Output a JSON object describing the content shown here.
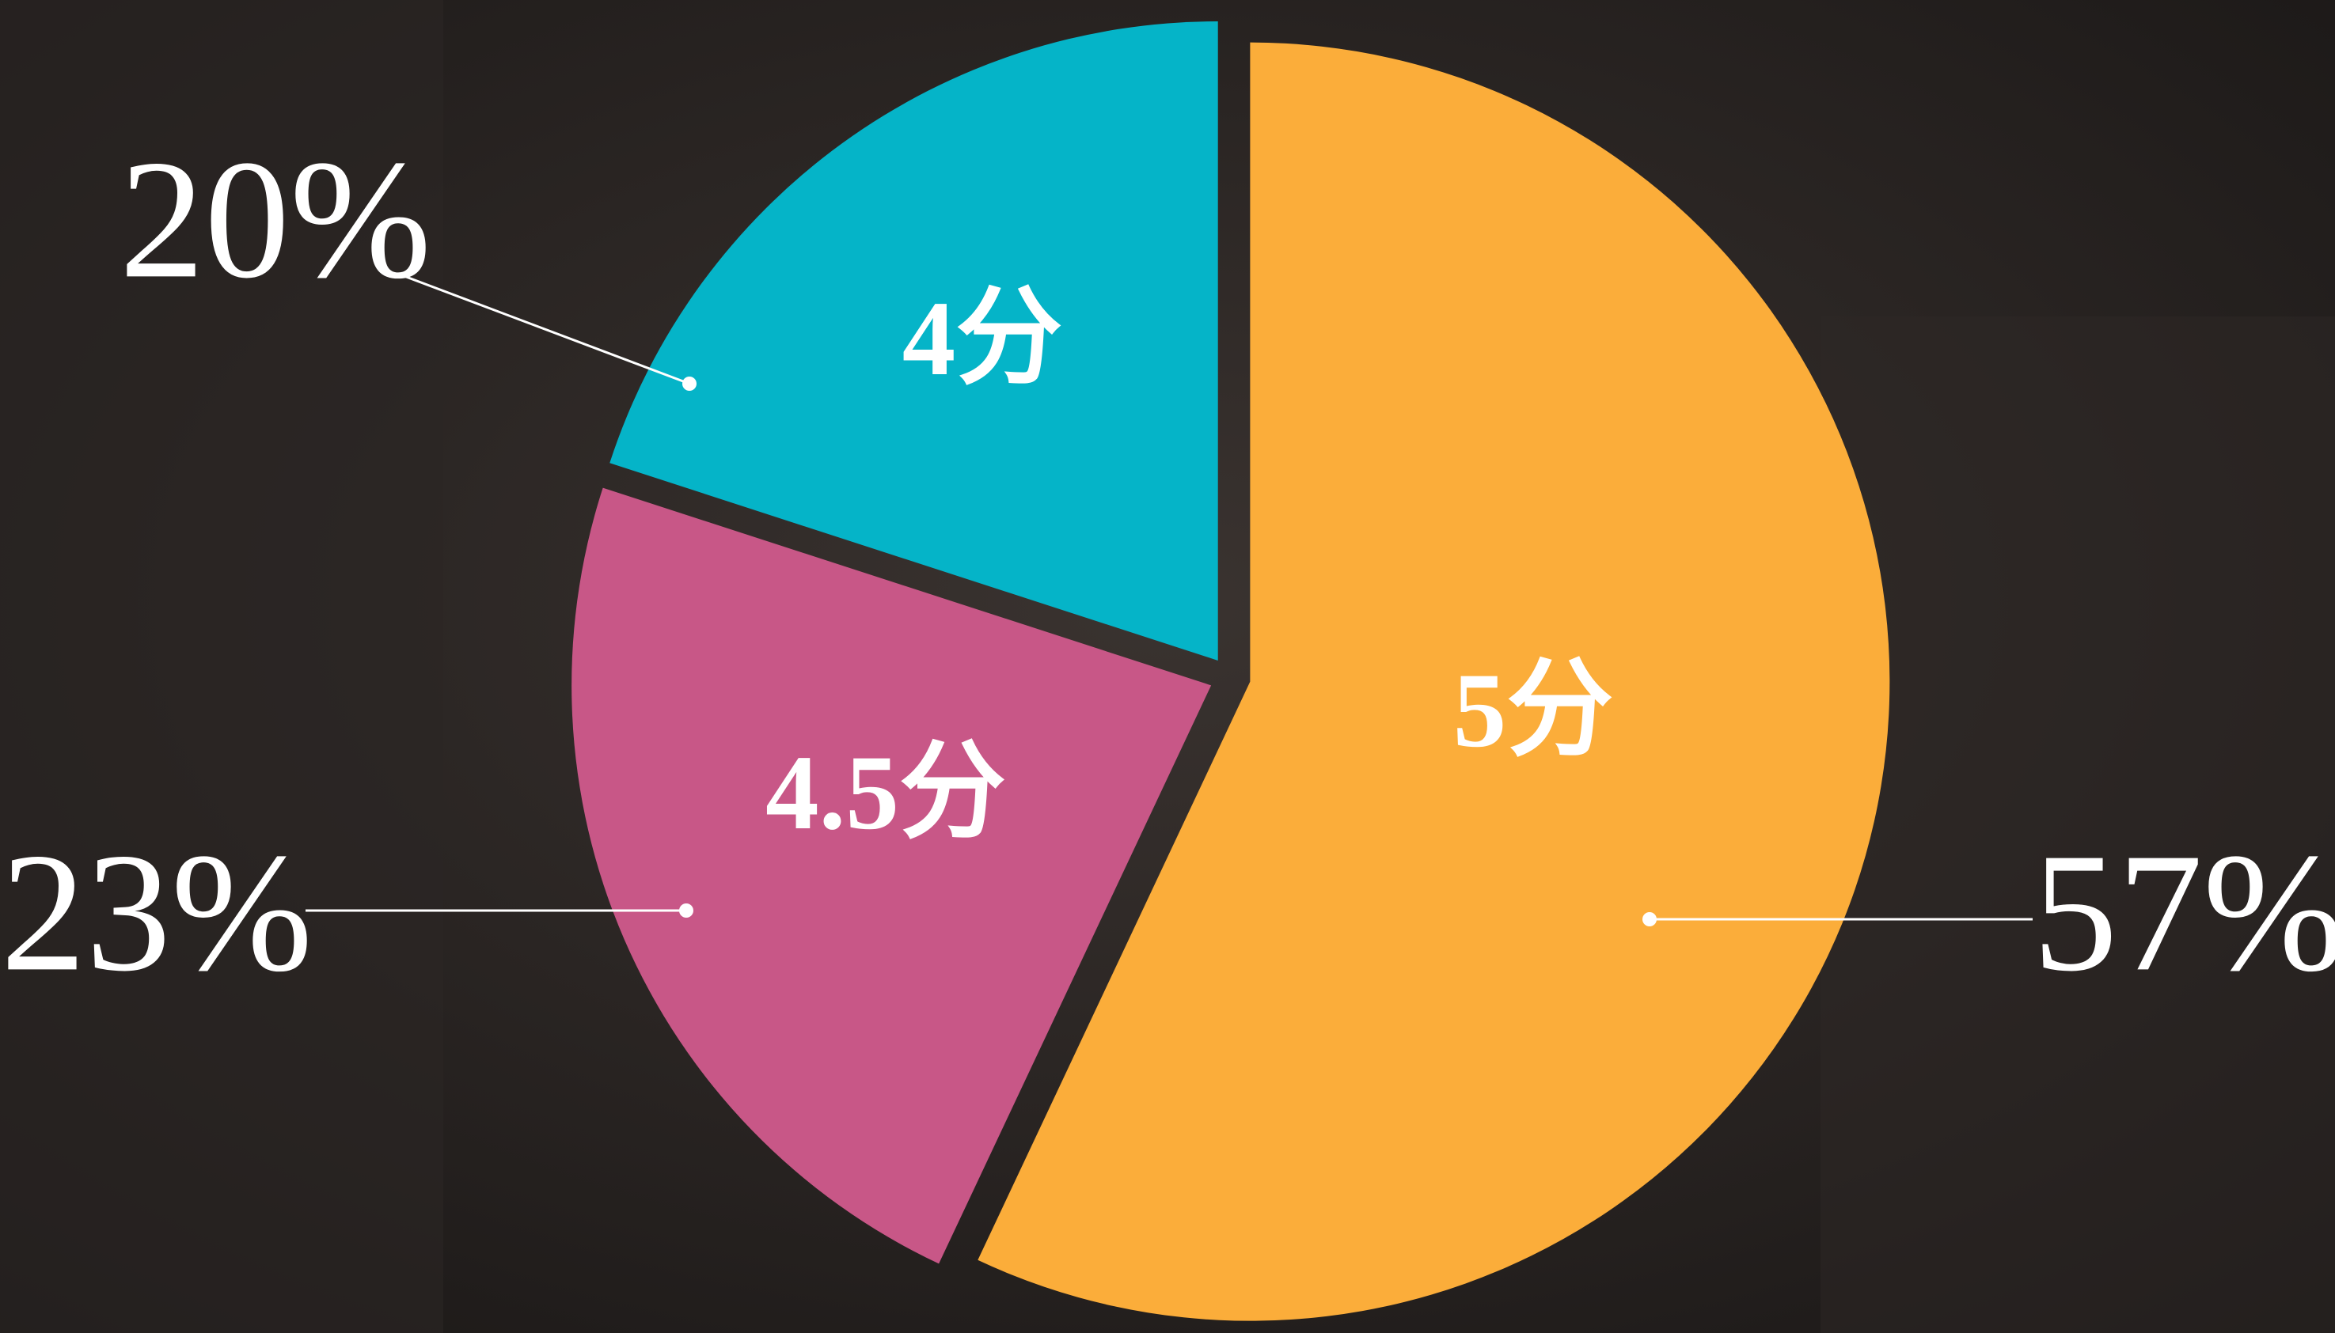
{
  "chart_data": {
    "type": "pie",
    "categories": [
      "5分",
      "4.5分",
      "4分"
    ],
    "values": [
      57,
      23,
      20
    ],
    "value_labels": [
      "57%",
      "23%",
      "20%"
    ],
    "colors": [
      "#fbad3a",
      "#c85787",
      "#05b4c8"
    ]
  }
}
